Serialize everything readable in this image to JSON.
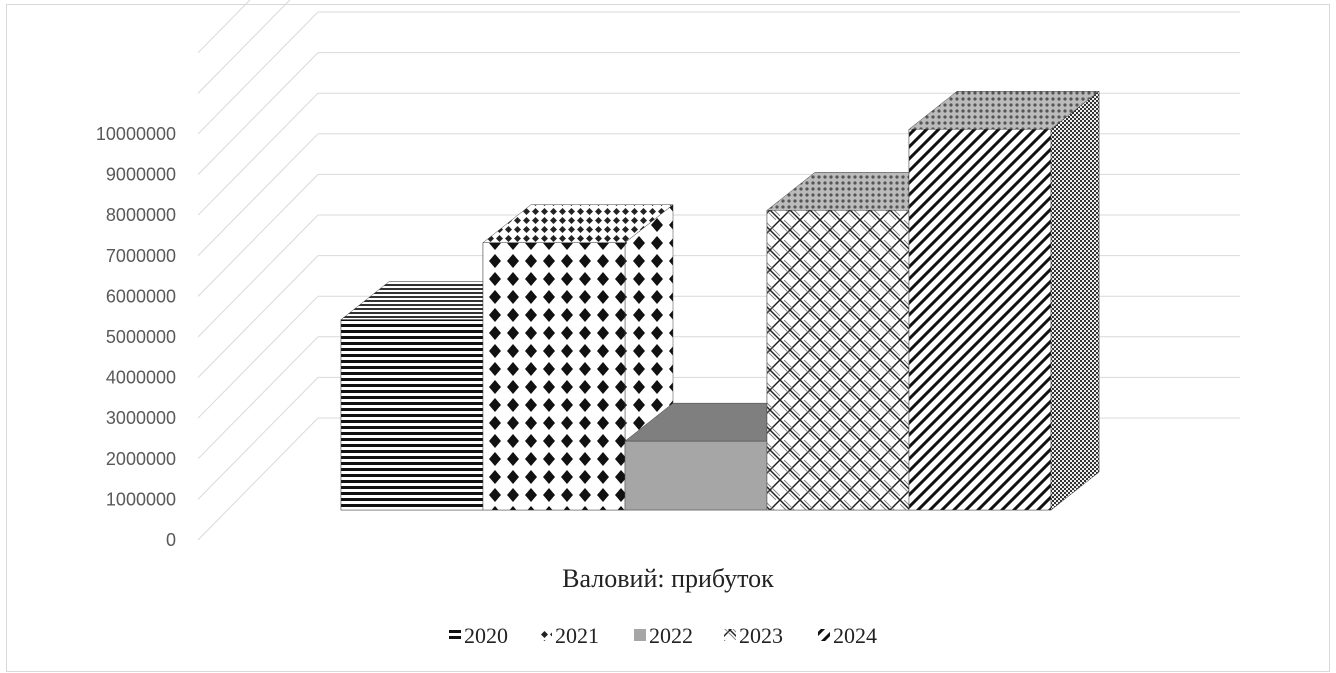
{
  "chart_data": {
    "type": "bar",
    "categories": [
      "Валовий: прибуток"
    ],
    "series": [
      {
        "name": "2020",
        "values": [
          4700000
        ],
        "pattern": "hstripes"
      },
      {
        "name": "2021",
        "values": [
          6600000
        ],
        "pattern": "diamonds"
      },
      {
        "name": "2022",
        "values": [
          1700000
        ],
        "pattern": "solid-gray"
      },
      {
        "name": "2023",
        "values": [
          7400000
        ],
        "pattern": "weave"
      },
      {
        "name": "2024",
        "values": [
          9400000
        ],
        "pattern": "diagonal"
      }
    ],
    "yticks": [
      "0",
      "1000000",
      "2000000",
      "3000000",
      "4000000",
      "5000000",
      "6000000",
      "7000000",
      "8000000",
      "9000000",
      "10000000"
    ],
    "ylim": [
      0,
      10000000
    ],
    "title": "",
    "xlabel": "Валовий: прибуток",
    "ylabel": "",
    "legend_position": "bottom",
    "grid": true,
    "style_3d": true
  }
}
